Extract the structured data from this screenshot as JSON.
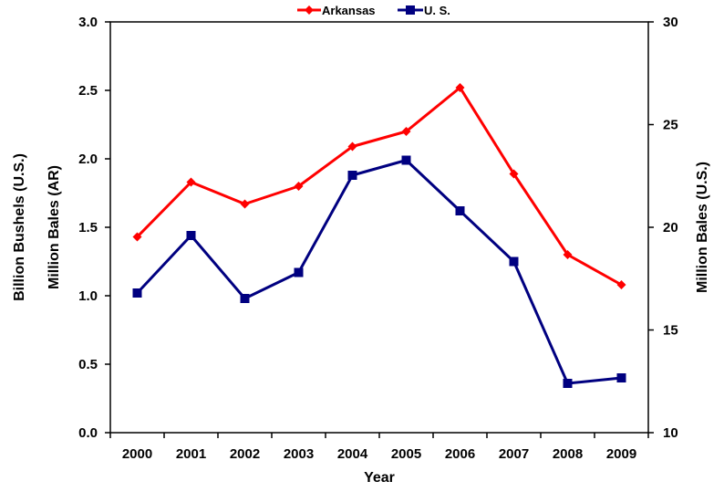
{
  "chart_data": {
    "type": "line",
    "x": [
      "2000",
      "2001",
      "2002",
      "2003",
      "2004",
      "2005",
      "2006",
      "2007",
      "2008",
      "2009"
    ],
    "xlabel": "Year",
    "ylabel_left_outer": "Billion Bushels (U.S.)",
    "ylabel_left_inner": "Million Bales (AR)",
    "ylabel_right": "Million Bales (U.S.)",
    "ylim_left": [
      0,
      3
    ],
    "yticks_left": [
      "0.0",
      "0.5",
      "1.0",
      "1.5",
      "2.0",
      "2.5",
      "3.0"
    ],
    "ylim_right": [
      10,
      30
    ],
    "yticks_right": [
      "10",
      "15",
      "20",
      "25",
      "30"
    ],
    "legend_position": "top-center",
    "grid": false,
    "series": [
      {
        "name": "Arkansas",
        "axis": "left",
        "color": "#ff0000",
        "marker": "diamond",
        "values": [
          1.43,
          1.83,
          1.67,
          1.8,
          2.09,
          2.2,
          2.52,
          1.89,
          1.3,
          1.08
        ]
      },
      {
        "name": "U. S.",
        "axis": "left",
        "color": "#000080",
        "marker": "square",
        "values": [
          1.02,
          1.44,
          0.98,
          1.17,
          1.88,
          1.99,
          1.62,
          1.25,
          0.36,
          0.4
        ]
      }
    ]
  }
}
